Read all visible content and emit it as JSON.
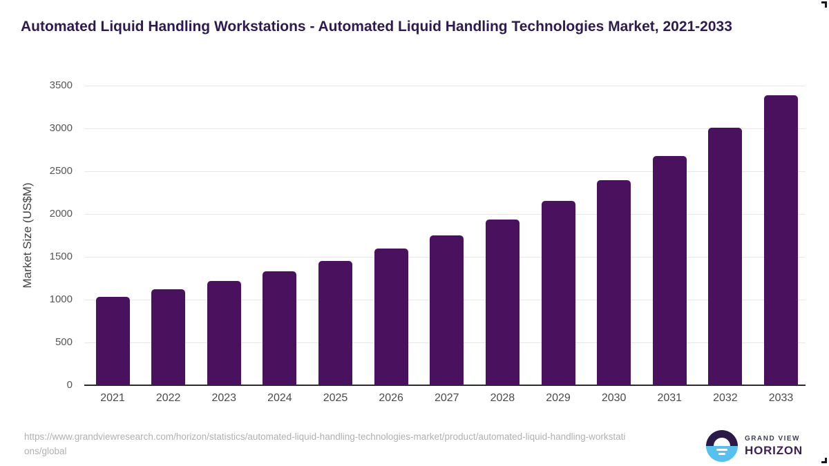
{
  "title": "Automated Liquid Handling Workstations - Automated Liquid Handling Technologies Market, 2021-2033",
  "chart_data": {
    "type": "bar",
    "title": "Automated Liquid Handling Workstations - Automated Liquid Handling Technologies Market, 2021-2033",
    "xlabel": "",
    "ylabel": "Market Size (US$M)",
    "categories": [
      "2021",
      "2022",
      "2023",
      "2024",
      "2025",
      "2026",
      "2027",
      "2028",
      "2029",
      "2030",
      "2031",
      "2032",
      "2033"
    ],
    "values": [
      1030,
      1120,
      1220,
      1330,
      1450,
      1595,
      1750,
      1935,
      2155,
      2395,
      2675,
      3005,
      3385
    ],
    "ylim": [
      0,
      3500
    ],
    "yticks": [
      0,
      500,
      1000,
      1500,
      2000,
      2500,
      3000,
      3500
    ],
    "grid": true,
    "legend": false
  },
  "footer": {
    "source_url": "https://www.grandviewresearch.com/horizon/statistics/automated-liquid-handling-technologies-market/product/automated-liquid-handling-workstations/global",
    "logo": {
      "icon": "grand-view-horizon-logo",
      "line1": "GRAND VIEW",
      "line2": "HORIZON"
    }
  },
  "colors": {
    "bar": "#4a115f",
    "title_text": "#2f1a4d",
    "axis_tick_text": "#565656",
    "x_tick_text": "#4a4a4a",
    "gridline": "#e7e7e7",
    "axis_line": "#2a2a2a",
    "url_text": "#b0b0b0",
    "logo_navy": "#2b1a48",
    "logo_blue": "#56c1ee",
    "logo_wordmark": "#3b2058"
  }
}
